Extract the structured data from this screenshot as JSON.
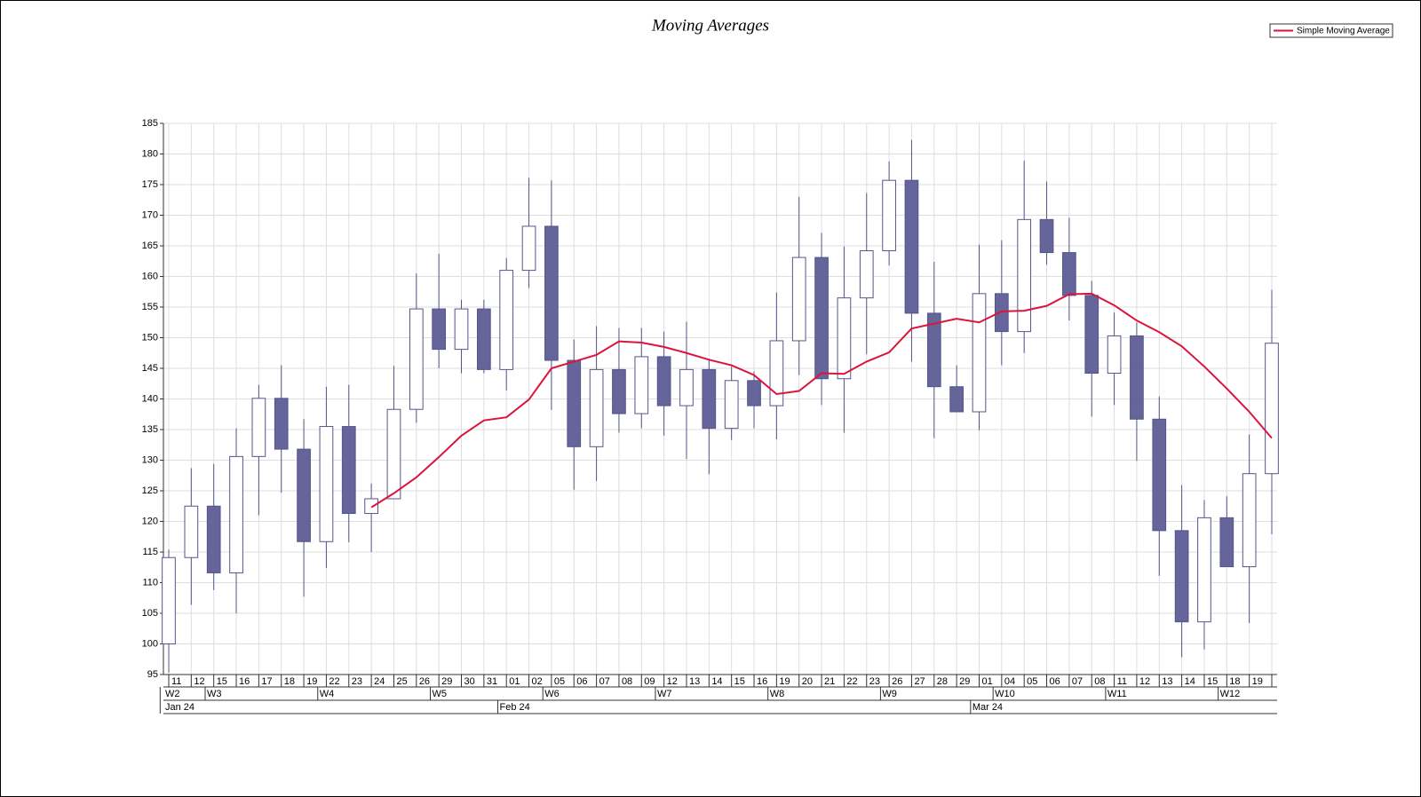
{
  "chart_data": {
    "type": "candlestick",
    "title": "Moving Averages",
    "categories": [
      "11",
      "12",
      "15",
      "16",
      "17",
      "18",
      "19",
      "22",
      "23",
      "24",
      "25",
      "26",
      "29",
      "30",
      "31",
      "01",
      "02",
      "05",
      "06",
      "07",
      "08",
      "09",
      "12",
      "13",
      "14",
      "15",
      "16",
      "19",
      "20",
      "21",
      "22",
      "23",
      "26",
      "27",
      "28",
      "29",
      "01",
      "04",
      "05",
      "06",
      "07",
      "08",
      "11",
      "12",
      "13",
      "14",
      "15",
      "18",
      "19",
      null
    ],
    "week_row": [
      "W2",
      null,
      "W3",
      null,
      null,
      null,
      null,
      "W4",
      null,
      null,
      null,
      null,
      "W5",
      null,
      null,
      null,
      null,
      "W6",
      null,
      null,
      null,
      null,
      "W7",
      null,
      null,
      null,
      null,
      "W8",
      null,
      null,
      null,
      null,
      "W9",
      null,
      null,
      null,
      null,
      "W10",
      null,
      null,
      null,
      null,
      "W11",
      null,
      null,
      null,
      null,
      "W12",
      null,
      null
    ],
    "month_row": [
      "Jan 24",
      null,
      null,
      null,
      null,
      null,
      null,
      null,
      null,
      null,
      null,
      null,
      null,
      null,
      null,
      "Feb 24",
      null,
      null,
      null,
      null,
      null,
      null,
      null,
      null,
      null,
      null,
      null,
      null,
      null,
      null,
      null,
      null,
      null,
      null,
      null,
      null,
      "Mar 24",
      null,
      null,
      null,
      null,
      null,
      null,
      null,
      null,
      null,
      null,
      null,
      null,
      null
    ],
    "open": [
      100,
      114.1,
      122.5,
      111.6,
      130.6,
      140.1,
      131.8,
      116.7,
      135.5,
      121.3,
      123.7,
      138.3,
      154.7,
      148.1,
      154.7,
      144.8,
      161,
      168.2,
      146.3,
      132.2,
      144.8,
      137.6,
      146.9,
      138.9,
      144.8,
      135.2,
      143,
      138.9,
      149.5,
      163.1,
      143.3,
      156.5,
      164.2,
      175.7,
      154,
      142,
      137.9,
      157.2,
      151,
      169.3,
      163.9,
      156.9,
      144.2,
      150.3,
      136.7,
      118.5,
      103.6,
      120.6,
      112.6,
      127.8
    ],
    "high": [
      115.4,
      128.7,
      129.4,
      135.2,
      142.3,
      145.5,
      136.7,
      142,
      142.3,
      126.2,
      145.4,
      160.5,
      163.7,
      156.2,
      156.2,
      163,
      176.1,
      175.7,
      149.7,
      151.9,
      151.6,
      151.6,
      151,
      152.6,
      146.6,
      145.3,
      144.5,
      157.4,
      173,
      167.1,
      164.9,
      173.6,
      178.8,
      182.3,
      162.4,
      145.5,
      165.2,
      165.9,
      178.9,
      175.5,
      169.6,
      159.3,
      154.1,
      152.5,
      140.4,
      125.9,
      123.5,
      124.1,
      134.2,
      157.8
    ],
    "low": [
      95.3,
      106.4,
      108.8,
      105,
      121,
      124.7,
      107.7,
      112.4,
      116.6,
      115,
      123.7,
      136.1,
      145,
      144.2,
      144.2,
      141.4,
      158.1,
      138.2,
      125.2,
      126.6,
      134.5,
      135.2,
      134,
      130.2,
      127.7,
      133.3,
      135.2,
      133.4,
      143.9,
      139,
      134.5,
      147.3,
      161.8,
      146.1,
      133.6,
      137.9,
      134.9,
      145.5,
      147.5,
      161.9,
      152.8,
      137.1,
      139,
      129.9,
      111.1,
      97.8,
      99.1,
      112.6,
      103.4,
      117.9
    ],
    "close": [
      114.1,
      122.5,
      111.6,
      130.6,
      140.1,
      131.8,
      116.7,
      135.5,
      121.3,
      123.7,
      138.3,
      154.7,
      148.1,
      154.7,
      144.8,
      161,
      168.2,
      146.3,
      132.2,
      144.8,
      137.6,
      146.9,
      138.9,
      144.8,
      135.2,
      143,
      138.9,
      149.5,
      163.1,
      143.3,
      156.5,
      164.2,
      175.7,
      154,
      142,
      137.9,
      157.2,
      151,
      169.3,
      163.9,
      156.9,
      144.2,
      150.3,
      136.7,
      118.5,
      103.6,
      120.6,
      112.6,
      127.8,
      149.1
    ],
    "up_color": "#ffffff",
    "down_color": "#65659b",
    "outline_color": "#55558a",
    "series": [
      {
        "name": "Simple Moving Average",
        "color": "#dc143c",
        "values": [
          null,
          null,
          null,
          null,
          null,
          null,
          null,
          null,
          null,
          122.3,
          124.6,
          127.2,
          130.5,
          134,
          136.5,
          137,
          139.9,
          145,
          146.1,
          147.2,
          149.4,
          149.2,
          148.5,
          147.5,
          146.4,
          145.5,
          143.9,
          140.8,
          141.3,
          144.2,
          144.1,
          146.1,
          147.6,
          151.5,
          152.3,
          153.1,
          152.5,
          154.3,
          154.4,
          155.2,
          157.1,
          157.2,
          155.3,
          152.8,
          150.9,
          148.6,
          145.3,
          141.7,
          137.9,
          133.6
        ]
      }
    ],
    "ylim": [
      95,
      185
    ],
    "yticks": [
      95,
      100,
      105,
      110,
      115,
      120,
      125,
      130,
      135,
      140,
      145,
      150,
      155,
      160,
      165,
      170,
      175,
      180,
      185
    ],
    "grid": true,
    "legend": "top-right"
  }
}
